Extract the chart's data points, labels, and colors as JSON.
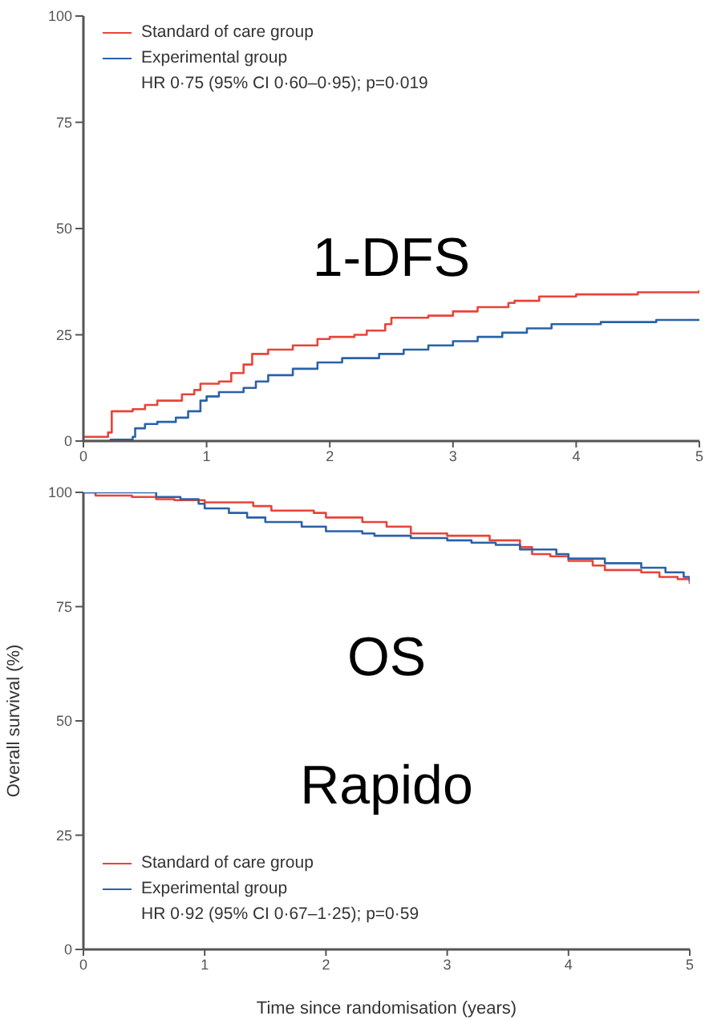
{
  "chart_data": [
    {
      "type": "step",
      "xlim": [
        0,
        5
      ],
      "xticks": [
        0,
        1,
        2,
        3,
        4,
        5
      ],
      "ylim": [
        0,
        100
      ],
      "yticks": [
        0,
        25,
        50,
        75,
        100
      ],
      "legend": "top left",
      "marker": "none",
      "line_style": "solid",
      "annotations": [
        "HR 0·75 (95% CI 0·60–0·95); p=0·019",
        "1-DFS"
      ],
      "series": [
        {
          "name": "Standard of care group",
          "color": "#e8443a",
          "x": [
            0,
            0.2,
            0.23,
            0.4,
            0.5,
            0.6,
            0.8,
            0.9,
            0.95,
            1.1,
            1.2,
            1.3,
            1.37,
            1.5,
            1.7,
            1.9,
            2.0,
            2.2,
            2.3,
            2.45,
            2.5,
            2.8,
            3.0,
            3.2,
            3.45,
            3.5,
            3.7,
            4.0,
            4.5,
            5
          ],
          "values": [
            1,
            2,
            7,
            7.5,
            8.5,
            9.5,
            11,
            12,
            13.5,
            14,
            16,
            18,
            20.5,
            21.5,
            22.5,
            24,
            24.5,
            25,
            26,
            27.5,
            29,
            29.5,
            30.5,
            31.5,
            32.5,
            33,
            34,
            34.5,
            35,
            35.5
          ]
        },
        {
          "name": "Experimental group",
          "color": "#2a62a8",
          "x": [
            0,
            0.22,
            0.4,
            0.42,
            0.5,
            0.6,
            0.75,
            0.85,
            0.95,
            1.0,
            1.1,
            1.3,
            1.4,
            1.5,
            1.7,
            1.9,
            2.1,
            2.4,
            2.6,
            2.8,
            3.0,
            3.2,
            3.4,
            3.6,
            3.8,
            4.2,
            4.65,
            5
          ],
          "values": [
            0,
            0.3,
            1,
            3,
            4,
            4.5,
            5.5,
            7,
            9.5,
            10.5,
            11.5,
            12.5,
            14,
            15.5,
            17,
            18.5,
            19.5,
            20.5,
            21.5,
            22.5,
            23.5,
            24.5,
            25.5,
            26.5,
            27.5,
            28,
            28.5,
            28.5
          ]
        }
      ]
    },
    {
      "type": "step",
      "xlabel": "Time since randomisation (years)",
      "ylabel": "Overall survival (%)",
      "xlim": [
        0,
        5
      ],
      "xticks": [
        0,
        1,
        2,
        3,
        4,
        5
      ],
      "ylim": [
        0,
        100
      ],
      "yticks": [
        0,
        25,
        50,
        75,
        100
      ],
      "legend": "bottom left",
      "marker": "none",
      "line_style": "solid",
      "annotations": [
        "HR 0·92 (95% CI 0·67–1·25); p=0·59",
        "OS",
        "Rapido"
      ],
      "series": [
        {
          "name": "Standard of care group",
          "color": "#e8443a",
          "x": [
            0,
            0.1,
            0.4,
            0.6,
            0.75,
            1.0,
            1.4,
            1.55,
            1.9,
            2.0,
            2.3,
            2.5,
            2.7,
            3.0,
            3.35,
            3.6,
            3.7,
            3.85,
            4.0,
            4.2,
            4.3,
            4.6,
            4.75,
            4.9,
            5
          ],
          "values": [
            100,
            99.3,
            99,
            98.5,
            98.3,
            97.8,
            97,
            96,
            95.5,
            94.5,
            93.5,
            92.5,
            91,
            90.5,
            89.5,
            88,
            86.5,
            86,
            85,
            84,
            83,
            82.5,
            81.5,
            81,
            80
          ]
        },
        {
          "name": "Experimental group",
          "color": "#2a62a8",
          "x": [
            0,
            0.45,
            0.6,
            0.8,
            0.95,
            1.0,
            1.2,
            1.35,
            1.5,
            1.8,
            2.0,
            2.3,
            2.4,
            2.7,
            3.0,
            3.2,
            3.4,
            3.6,
            3.9,
            4.0,
            4.3,
            4.6,
            4.8,
            4.95,
            5
          ],
          "values": [
            100,
            100,
            99,
            98.5,
            97.5,
            96.5,
            95.5,
            94.5,
            93.5,
            92.5,
            91.5,
            91,
            90.5,
            90,
            89.5,
            89,
            88.5,
            87.5,
            86.5,
            85.5,
            84.5,
            83.5,
            82.5,
            81.5,
            80.5
          ]
        }
      ]
    }
  ]
}
